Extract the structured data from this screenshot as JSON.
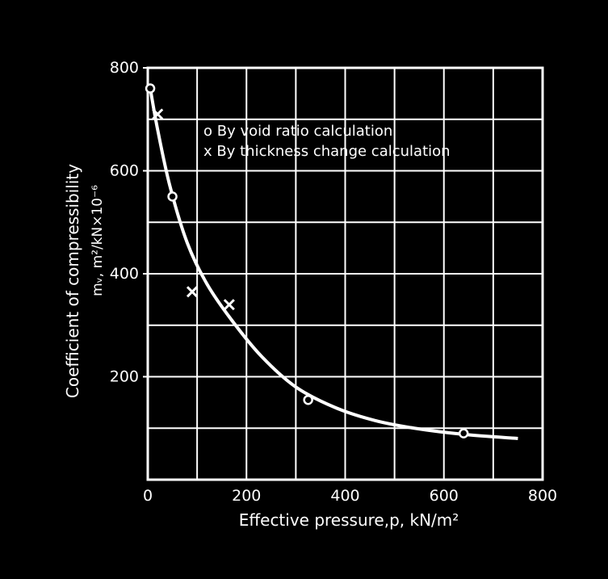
{
  "chart_data": {
    "type": "scatter",
    "xlabel": "Effective pressure,p,  kN/m²",
    "ylabel_line1": "Coefficient of compressibility",
    "ylabel_line2": "mᵥ, m²/kN×10⁻⁶",
    "xlim": [
      0,
      800
    ],
    "ylim": [
      0,
      800
    ],
    "x_ticks": [
      0,
      200,
      400,
      600,
      800
    ],
    "x_tick_labels": [
      "0",
      "200",
      "400",
      "600",
      "800"
    ],
    "y_ticks": [
      200,
      400,
      600,
      800
    ],
    "y_tick_labels": [
      "200",
      "400",
      "600",
      "800"
    ],
    "grid": true,
    "grid_step": 100,
    "legend_position": "top-right",
    "legend_entries": [
      {
        "marker": "o",
        "label": "o By void ratio calculation"
      },
      {
        "marker": "x",
        "label": "x By thickness change calculation"
      }
    ],
    "series": [
      {
        "name": "By void ratio calculation",
        "marker": "o",
        "points": [
          [
            5,
            760
          ],
          [
            50,
            550
          ],
          [
            325,
            155
          ],
          [
            640,
            90
          ]
        ]
      },
      {
        "name": "By thickness change calculation",
        "marker": "x",
        "points": [
          [
            20,
            710
          ],
          [
            90,
            365
          ],
          [
            165,
            340
          ]
        ]
      }
    ],
    "fitted_curve": [
      [
        5,
        760
      ],
      [
        20,
        680
      ],
      [
        45,
        570
      ],
      [
        80,
        460
      ],
      [
        120,
        380
      ],
      [
        170,
        310
      ],
      [
        230,
        240
      ],
      [
        300,
        180
      ],
      [
        380,
        140
      ],
      [
        460,
        115
      ],
      [
        540,
        100
      ],
      [
        640,
        88
      ],
      [
        750,
        80
      ]
    ],
    "colors": {
      "background": "#000000",
      "foreground": "#ffffff"
    }
  }
}
